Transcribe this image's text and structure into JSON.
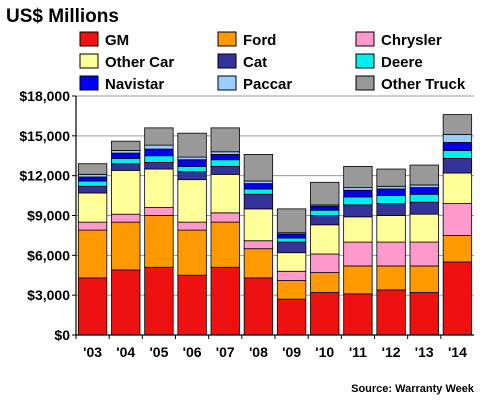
{
  "chart_data": {
    "type": "bar",
    "stacked": true,
    "title": "US$ Millions",
    "source": "Source: Warranty Week",
    "ylim": [
      0,
      18000
    ],
    "yticks": [
      0,
      3000,
      6000,
      9000,
      12000,
      15000,
      18000
    ],
    "ytick_labels": [
      "$0",
      "$3,000",
      "$6,000",
      "$9,000",
      "$12,000",
      "$15,000",
      "$18,000"
    ],
    "grid": true,
    "legend_position": "top",
    "categories": [
      "'03",
      "'04",
      "'05",
      "'06",
      "'07",
      "'08",
      "'09",
      "'10",
      "'11",
      "'12",
      "'13",
      "'14"
    ],
    "series": [
      {
        "name": "GM",
        "color": "#ee1111",
        "values": [
          4300,
          4900,
          5100,
          4500,
          5100,
          4300,
          2700,
          3200,
          3100,
          3400,
          3200,
          5500
        ]
      },
      {
        "name": "Ford",
        "color": "#ff9900",
        "values": [
          3600,
          3600,
          3900,
          3400,
          3400,
          2200,
          1400,
          1500,
          2100,
          1800,
          2000,
          2000
        ]
      },
      {
        "name": "Chrysler",
        "color": "#ff99cc",
        "values": [
          600,
          600,
          600,
          600,
          700,
          600,
          700,
          1400,
          1800,
          1800,
          1800,
          2400
        ]
      },
      {
        "name": "Other Car",
        "color": "#ffff99",
        "values": [
          2200,
          3300,
          2900,
          3200,
          2900,
          2400,
          1400,
          2200,
          1900,
          2000,
          2100,
          2300
        ]
      },
      {
        "name": "Cat",
        "color": "#333399",
        "values": [
          500,
          500,
          500,
          600,
          600,
          1100,
          800,
          700,
          900,
          900,
          900,
          1100
        ]
      },
      {
        "name": "Deere",
        "color": "#00eeee",
        "values": [
          400,
          400,
          500,
          400,
          500,
          400,
          300,
          400,
          600,
          600,
          600,
          600
        ]
      },
      {
        "name": "Navistar",
        "color": "#0000ee",
        "values": [
          300,
          400,
          500,
          500,
          400,
          400,
          300,
          300,
          500,
          500,
          500,
          600
        ]
      },
      {
        "name": "Paccar",
        "color": "#99ccff",
        "values": [
          200,
          200,
          300,
          200,
          200,
          200,
          100,
          100,
          200,
          200,
          200,
          600
        ]
      },
      {
        "name": "Other Truck",
        "color": "#999999",
        "values": [
          800,
          700,
          1300,
          1800,
          1800,
          2000,
          1800,
          1700,
          1600,
          1300,
          1500,
          1500
        ]
      }
    ]
  }
}
